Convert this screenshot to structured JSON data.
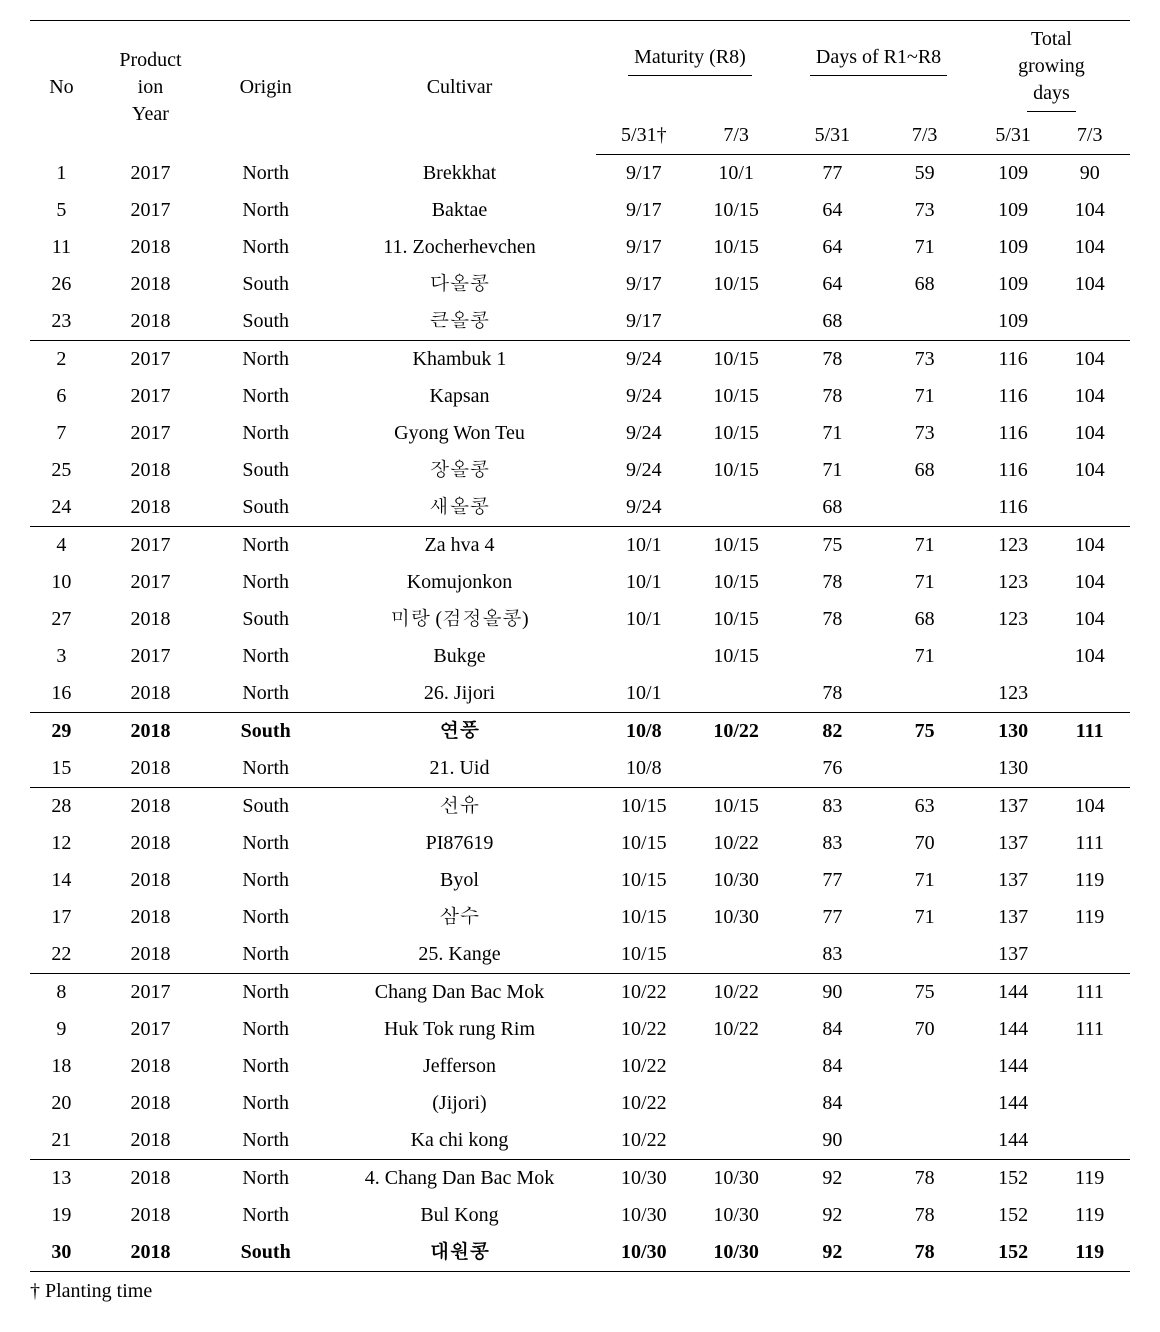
{
  "header": {
    "no": "No",
    "year_line1": "Product",
    "year_line2": "ion",
    "year_line3": "Year",
    "origin": "Origin",
    "cultivar": "Cultivar",
    "maturity": "Maturity (R8)",
    "days": "Days of R1~R8",
    "total_line1": "Total",
    "total_line2": "growing",
    "total_line3": "days",
    "sub_531_dagger": "5/31†",
    "sub_531": "5/31",
    "sub_73": "7/3"
  },
  "footnote": "† Planting time",
  "groups": [
    {
      "rows": [
        {
          "no": "1",
          "year": "2017",
          "origin": "North",
          "cultivar": "Brekkhat",
          "m1": "9/17",
          "m2": "10/1",
          "d1": "77",
          "d2": "59",
          "t1": "109",
          "t2": "90",
          "bold": false
        },
        {
          "no": "5",
          "year": "2017",
          "origin": "North",
          "cultivar": "Baktae",
          "m1": "9/17",
          "m2": "10/15",
          "d1": "64",
          "d2": "73",
          "t1": "109",
          "t2": "104",
          "bold": false
        },
        {
          "no": "11",
          "year": "2018",
          "origin": "North",
          "cultivar": "11. Zocherhevchen",
          "m1": "9/17",
          "m2": "10/15",
          "d1": "64",
          "d2": "71",
          "t1": "109",
          "t2": "104",
          "bold": false
        },
        {
          "no": "26",
          "year": "2018",
          "origin": "South",
          "cultivar": "다올콩",
          "m1": "9/17",
          "m2": "10/15",
          "d1": "64",
          "d2": "68",
          "t1": "109",
          "t2": "104",
          "bold": false
        },
        {
          "no": "23",
          "year": "2018",
          "origin": "South",
          "cultivar": "큰올콩",
          "m1": "9/17",
          "m2": "",
          "d1": "68",
          "d2": "",
          "t1": "109",
          "t2": "",
          "bold": false
        }
      ]
    },
    {
      "rows": [
        {
          "no": "2",
          "year": "2017",
          "origin": "North",
          "cultivar": "Khambuk 1",
          "m1": "9/24",
          "m2": "10/15",
          "d1": "78",
          "d2": "73",
          "t1": "116",
          "t2": "104",
          "bold": false
        },
        {
          "no": "6",
          "year": "2017",
          "origin": "North",
          "cultivar": "Kapsan",
          "m1": "9/24",
          "m2": "10/15",
          "d1": "78",
          "d2": "71",
          "t1": "116",
          "t2": "104",
          "bold": false
        },
        {
          "no": "7",
          "year": "2017",
          "origin": "North",
          "cultivar": "Gyong Won Teu",
          "m1": "9/24",
          "m2": "10/15",
          "d1": "71",
          "d2": "73",
          "t1": "116",
          "t2": "104",
          "bold": false
        },
        {
          "no": "25",
          "year": "2018",
          "origin": "South",
          "cultivar": "장올콩",
          "m1": "9/24",
          "m2": "10/15",
          "d1": "71",
          "d2": "68",
          "t1": "116",
          "t2": "104",
          "bold": false
        },
        {
          "no": "24",
          "year": "2018",
          "origin": "South",
          "cultivar": "새올콩",
          "m1": "9/24",
          "m2": "",
          "d1": "68",
          "d2": "",
          "t1": "116",
          "t2": "",
          "bold": false
        }
      ]
    },
    {
      "rows": [
        {
          "no": "4",
          "year": "2017",
          "origin": "North",
          "cultivar": "Za hva 4",
          "m1": "10/1",
          "m2": "10/15",
          "d1": "75",
          "d2": "71",
          "t1": "123",
          "t2": "104",
          "bold": false
        },
        {
          "no": "10",
          "year": "2017",
          "origin": "North",
          "cultivar": "Komujonkon",
          "m1": "10/1",
          "m2": "10/15",
          "d1": "78",
          "d2": "71",
          "t1": "123",
          "t2": "104",
          "bold": false
        },
        {
          "no": "27",
          "year": "2018",
          "origin": "South",
          "cultivar": "미랑 (검정올콩)",
          "m1": "10/1",
          "m2": "10/15",
          "d1": "78",
          "d2": "68",
          "t1": "123",
          "t2": "104",
          "bold": false
        },
        {
          "no": "3",
          "year": "2017",
          "origin": "North",
          "cultivar": "Bukge",
          "m1": "",
          "m2": "10/15",
          "d1": "",
          "d2": "71",
          "t1": "",
          "t2": "104",
          "bold": false
        },
        {
          "no": "16",
          "year": "2018",
          "origin": "North",
          "cultivar": "26. Jijori",
          "m1": "10/1",
          "m2": "",
          "d1": "78",
          "d2": "",
          "t1": "123",
          "t2": "",
          "bold": false
        }
      ]
    },
    {
      "rows": [
        {
          "no": "29",
          "year": "2018",
          "origin": "South",
          "cultivar": "연풍",
          "m1": "10/8",
          "m2": "10/22",
          "d1": "82",
          "d2": "75",
          "t1": "130",
          "t2": "111",
          "bold": true
        },
        {
          "no": "15",
          "year": "2018",
          "origin": "North",
          "cultivar": "21. Uid",
          "m1": "10/8",
          "m2": "",
          "d1": "76",
          "d2": "",
          "t1": "130",
          "t2": "",
          "bold": false
        }
      ]
    },
    {
      "rows": [
        {
          "no": "28",
          "year": "2018",
          "origin": "South",
          "cultivar": "선유",
          "m1": "10/15",
          "m2": "10/15",
          "d1": "83",
          "d2": "63",
          "t1": "137",
          "t2": "104",
          "bold": false
        },
        {
          "no": "12",
          "year": "2018",
          "origin": "North",
          "cultivar": "PI87619",
          "m1": "10/15",
          "m2": "10/22",
          "d1": "83",
          "d2": "70",
          "t1": "137",
          "t2": "111",
          "bold": false
        },
        {
          "no": "14",
          "year": "2018",
          "origin": "North",
          "cultivar": "Byol",
          "m1": "10/15",
          "m2": "10/30",
          "d1": "77",
          "d2": "71",
          "t1": "137",
          "t2": "119",
          "bold": false
        },
        {
          "no": "17",
          "year": "2018",
          "origin": "North",
          "cultivar": "삼수",
          "m1": "10/15",
          "m2": "10/30",
          "d1": "77",
          "d2": "71",
          "t1": "137",
          "t2": "119",
          "bold": false
        },
        {
          "no": "22",
          "year": "2018",
          "origin": "North",
          "cultivar": "25. Kange",
          "m1": "10/15",
          "m2": "",
          "d1": "83",
          "d2": "",
          "t1": "137",
          "t2": "",
          "bold": false
        }
      ]
    },
    {
      "rows": [
        {
          "no": "8",
          "year": "2017",
          "origin": "North",
          "cultivar": "Chang Dan Bac Mok",
          "m1": "10/22",
          "m2": "10/22",
          "d1": "90",
          "d2": "75",
          "t1": "144",
          "t2": "111",
          "bold": false
        },
        {
          "no": "9",
          "year": "2017",
          "origin": "North",
          "cultivar": "Huk Tok rung Rim",
          "m1": "10/22",
          "m2": "10/22",
          "d1": "84",
          "d2": "70",
          "t1": "144",
          "t2": "111",
          "bold": false
        },
        {
          "no": "18",
          "year": "2018",
          "origin": "North",
          "cultivar": "Jefferson",
          "m1": "10/22",
          "m2": "",
          "d1": "84",
          "d2": "",
          "t1": "144",
          "t2": "",
          "bold": false
        },
        {
          "no": "20",
          "year": "2018",
          "origin": "North",
          "cultivar": "(Jijori)",
          "m1": "10/22",
          "m2": "",
          "d1": "84",
          "d2": "",
          "t1": "144",
          "t2": "",
          "bold": false
        },
        {
          "no": "21",
          "year": "2018",
          "origin": "North",
          "cultivar": "Ka chi kong",
          "m1": "10/22",
          "m2": "",
          "d1": "90",
          "d2": "",
          "t1": "144",
          "t2": "",
          "bold": false
        }
      ]
    },
    {
      "rows": [
        {
          "no": "13",
          "year": "2018",
          "origin": "North",
          "cultivar": "4. Chang Dan Bac Mok",
          "m1": "10/30",
          "m2": "10/30",
          "d1": "92",
          "d2": "78",
          "t1": "152",
          "t2": "119",
          "bold": false
        },
        {
          "no": "19",
          "year": "2018",
          "origin": "North",
          "cultivar": "Bul Kong",
          "m1": "10/30",
          "m2": "10/30",
          "d1": "92",
          "d2": "78",
          "t1": "152",
          "t2": "119",
          "bold": false
        },
        {
          "no": "30",
          "year": "2018",
          "origin": "South",
          "cultivar": "대원콩",
          "m1": "10/30",
          "m2": "10/30",
          "d1": "92",
          "d2": "78",
          "t1": "152",
          "t2": "119",
          "bold": true
        }
      ]
    }
  ]
}
